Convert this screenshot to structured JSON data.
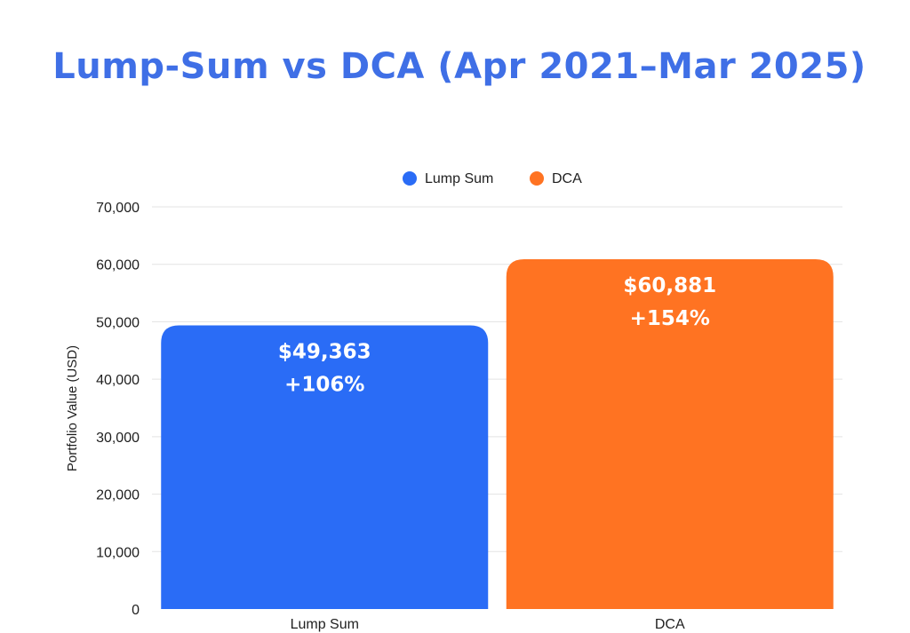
{
  "chart_data": {
    "type": "bar",
    "title": "Lump-Sum vs DCA (Apr 2021–Mar 2025)",
    "xlabel": "",
    "ylabel": "Portfolio Value (USD)",
    "ylim": [
      0,
      70000
    ],
    "yticks": [
      0,
      10000,
      20000,
      30000,
      40000,
      50000,
      60000,
      70000
    ],
    "ytick_labels": [
      "0",
      "10,000",
      "20,000",
      "30,000",
      "40,000",
      "50,000",
      "60,000",
      "70,000"
    ],
    "categories": [
      "Lump Sum",
      "DCA"
    ],
    "values": [
      49363,
      60881
    ],
    "value_labels": [
      "$49,363",
      "$60,881"
    ],
    "return_labels": [
      "+106%",
      "+154%"
    ],
    "colors": [
      "#2A6CF6",
      "#FF7322"
    ],
    "title_color": "#3F6FE6",
    "legend": {
      "placement": "top-center",
      "entries": [
        {
          "label": "Lump Sum",
          "color": "#2A6CF6"
        },
        {
          "label": "DCA",
          "color": "#FF7322"
        }
      ]
    },
    "grid": true
  }
}
